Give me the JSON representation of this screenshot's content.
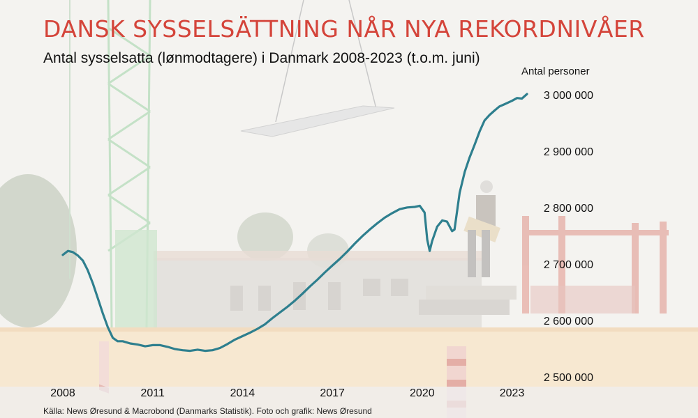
{
  "header": {
    "title": "DANSK SYSSELSÄTTNING NÅR NYA REKORDNIVÅER",
    "subtitle": "Antal sysselsatta (lønmodtagere) i Danmark 2008-2023 (t.o.m. juni)"
  },
  "footer": {
    "source": "Källa: News Øresund & Macrobond (Danmarks Statistik). Foto och grafik: News Øresund"
  },
  "colors": {
    "title": "#d4443a",
    "line": "#2e7f8e"
  },
  "chart_data": {
    "type": "line",
    "title": "DANSK SYSSELSÄTTNING NÅR NYA REKORDNIVÅER",
    "subtitle": "Antal sysselsatta (lønmodtagere) i Danmark 2008-2023 (t.o.m. juni)",
    "ylabel": "Antal personer",
    "xlabel": "",
    "xlim": [
      2008.0,
      2023.5
    ],
    "ylim": [
      2500000,
      3000000
    ],
    "x_ticks": [
      2008,
      2011,
      2014,
      2017,
      2020,
      2023
    ],
    "x_tick_labels": [
      "2008",
      "2011",
      "2014",
      "2017",
      "2020",
      "2023"
    ],
    "y_ticks": [
      2500000,
      2600000,
      2700000,
      2800000,
      2900000,
      3000000
    ],
    "y_tick_labels": [
      "2 500 000",
      "2 600 000",
      "2 700 000",
      "2 800 000",
      "2 900 000",
      "3 000 000"
    ],
    "grid": false,
    "legend": "none",
    "series": [
      {
        "x": [
          2008.0,
          2008.17,
          2008.33,
          2008.5,
          2008.67,
          2008.83,
          2009.0,
          2009.17,
          2009.33,
          2009.5,
          2009.67,
          2009.83,
          2010.0,
          2010.25,
          2010.5,
          2010.75,
          2011.0,
          2011.25,
          2011.5,
          2011.75,
          2012.0,
          2012.25,
          2012.5,
          2012.75,
          2013.0,
          2013.25,
          2013.5,
          2013.75,
          2014.0,
          2014.25,
          2014.5,
          2014.75,
          2015.0,
          2015.25,
          2015.5,
          2015.75,
          2016.0,
          2016.25,
          2016.5,
          2016.75,
          2017.0,
          2017.25,
          2017.5,
          2017.75,
          2018.0,
          2018.25,
          2018.5,
          2018.75,
          2019.0,
          2019.25,
          2019.5,
          2019.75,
          2019.92,
          2020.08,
          2020.17,
          2020.25,
          2020.33,
          2020.5,
          2020.67,
          2020.83,
          2021.0,
          2021.08,
          2021.25,
          2021.42,
          2021.58,
          2021.75,
          2021.92,
          2022.08,
          2022.25,
          2022.42,
          2022.58,
          2022.75,
          2023.0,
          2023.17,
          2023.33,
          2023.5
        ],
        "values": [
          2715000,
          2722000,
          2720000,
          2714000,
          2705000,
          2688000,
          2665000,
          2638000,
          2612000,
          2587000,
          2568000,
          2562000,
          2562000,
          2558000,
          2556000,
          2553000,
          2555000,
          2555000,
          2552000,
          2548000,
          2546000,
          2545000,
          2547000,
          2545000,
          2546000,
          2550000,
          2557000,
          2565000,
          2571000,
          2577000,
          2584000,
          2592000,
          2603000,
          2613000,
          2623000,
          2634000,
          2646000,
          2659000,
          2671000,
          2684000,
          2696000,
          2708000,
          2721000,
          2735000,
          2748000,
          2760000,
          2771000,
          2781000,
          2789000,
          2796000,
          2799000,
          2800000,
          2802000,
          2790000,
          2742000,
          2722000,
          2739000,
          2765000,
          2776000,
          2774000,
          2757000,
          2760000,
          2825000,
          2862000,
          2887000,
          2910000,
          2934000,
          2953000,
          2963000,
          2971000,
          2978000,
          2982000,
          2988000,
          2993000,
          2992000,
          3000000
        ]
      }
    ]
  }
}
